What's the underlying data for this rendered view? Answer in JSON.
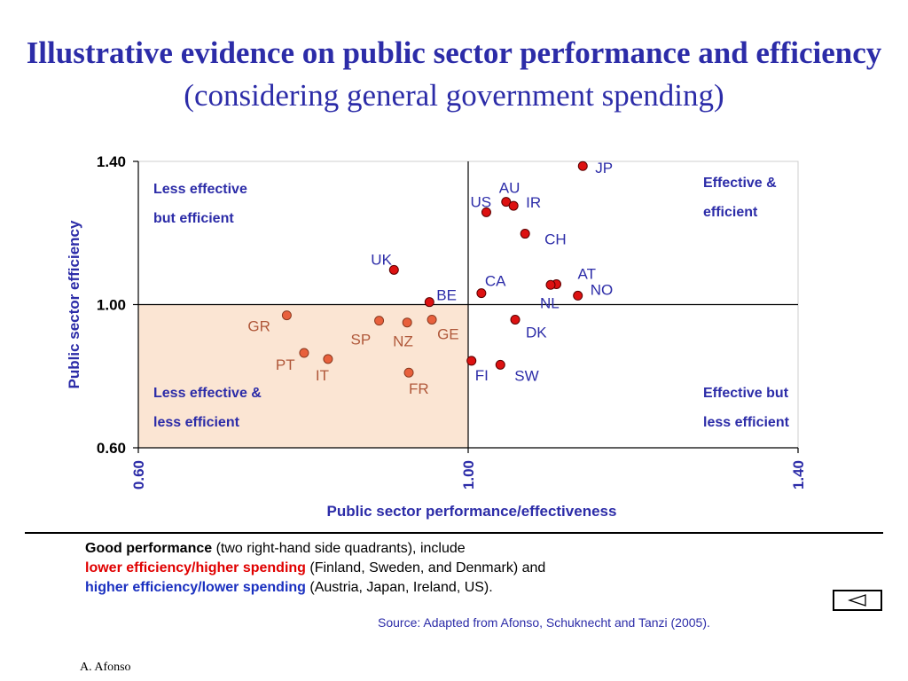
{
  "slide": {
    "title_bold": "Illustrative evidence on public sector performance and efficiency",
    "title_rest": "(considering general government spending)",
    "note_line1_bold": "Good performance",
    "note_line1_rest": "(two right-hand side quadrants), include",
    "note_line2_red": "lower efficiency/higher spending",
    "note_line2_rest": "(Finland, Sweden, and Denmark) and",
    "note_line3_blue": "higher efficiency/lower spending",
    "note_line3_rest": "(Austria, Japan, Ireland, US).",
    "source": "Source: Adapted from Afonso, Schuknecht and Tanzi (2005).",
    "author": "A. Afonso",
    "nav_icon": "triangle-left-icon"
  },
  "chart_data": {
    "type": "scatter",
    "xlabel": "Public sector performance/effectiveness",
    "ylabel": "Public sector efficiency",
    "xlim": [
      0.6,
      1.4
    ],
    "ylim": [
      0.6,
      1.4
    ],
    "x_ticks": [
      "0.60",
      "1.00",
      "1.40"
    ],
    "y_ticks": [
      "0.60",
      "1.00",
      "1.40"
    ],
    "reference_lines": {
      "x": 1.0,
      "y": 1.0
    },
    "highlight_quadrant": "bottom-left",
    "colors": {
      "red": "#dd1111",
      "orange": "#e8603c",
      "label_blue": "#2c2ca8",
      "label_orange": "#b0583a",
      "shade": "#fbe5d3"
    },
    "quadrant_labels": [
      {
        "line1": "Less effective",
        "line2": "but efficient",
        "position": "top-left"
      },
      {
        "line1": "Effective &",
        "line2": "efficient",
        "position": "top-right"
      },
      {
        "line1": "Less effective &",
        "line2": "less efficient",
        "position": "bottom-left"
      },
      {
        "line1": "Effective but",
        "line2": "less efficient",
        "position": "bottom-right"
      }
    ],
    "points": [
      {
        "label": "JP",
        "x": 1.139,
        "y": 1.387,
        "group": "red"
      },
      {
        "label": "AU",
        "x": 1.046,
        "y": 1.287,
        "group": "red"
      },
      {
        "label": "US",
        "x": 1.022,
        "y": 1.258,
        "group": "red"
      },
      {
        "label": "IR",
        "x": 1.055,
        "y": 1.276,
        "group": "red"
      },
      {
        "label": "CH",
        "x": 1.069,
        "y": 1.198,
        "group": "red"
      },
      {
        "label": "UK",
        "x": 0.91,
        "y": 1.097,
        "group": "red"
      },
      {
        "label": "CA",
        "x": 1.016,
        "y": 1.032,
        "group": "red"
      },
      {
        "label": "BE",
        "x": 0.953,
        "y": 1.007,
        "group": "red"
      },
      {
        "label": "AT",
        "x": 1.107,
        "y": 1.057,
        "group": "red"
      },
      {
        "label": "NL",
        "x": 1.1,
        "y": 1.055,
        "group": "red"
      },
      {
        "label": "NO",
        "x": 1.133,
        "y": 1.025,
        "group": "red"
      },
      {
        "label": "DK",
        "x": 1.057,
        "y": 0.958,
        "group": "red"
      },
      {
        "label": "FI",
        "x": 1.004,
        "y": 0.843,
        "group": "red"
      },
      {
        "label": "SW",
        "x": 1.039,
        "y": 0.832,
        "group": "red"
      },
      {
        "label": "GR",
        "x": 0.78,
        "y": 0.97,
        "group": "orange"
      },
      {
        "label": "SP",
        "x": 0.892,
        "y": 0.955,
        "group": "orange"
      },
      {
        "label": "NZ",
        "x": 0.926,
        "y": 0.95,
        "group": "orange"
      },
      {
        "label": "GE",
        "x": 0.956,
        "y": 0.958,
        "group": "orange"
      },
      {
        "label": "PT",
        "x": 0.801,
        "y": 0.865,
        "group": "orange"
      },
      {
        "label": "IT",
        "x": 0.83,
        "y": 0.848,
        "group": "orange"
      },
      {
        "label": "FR",
        "x": 0.928,
        "y": 0.81,
        "group": "orange"
      }
    ]
  }
}
